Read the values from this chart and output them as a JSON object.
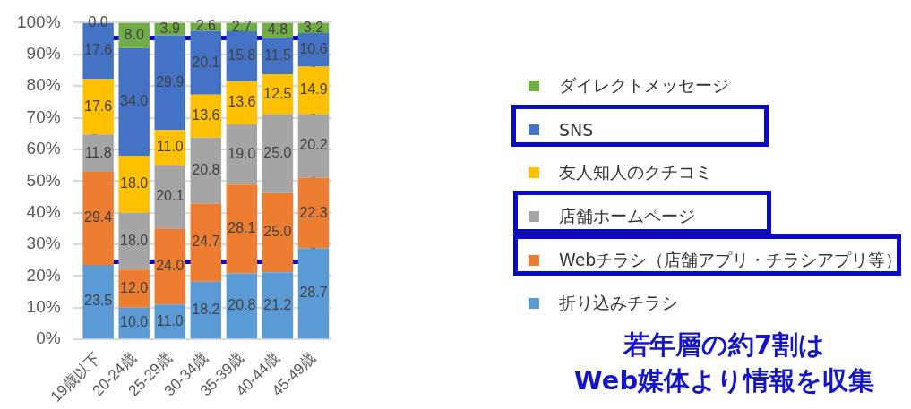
{
  "chart_data": {
    "type": "bar",
    "stacked": true,
    "categories": [
      "19歳以下",
      "20-24歳",
      "25-29歳",
      "30-34歳",
      "35-39歳",
      "40-44歳",
      "45-49歳"
    ],
    "series": [
      {
        "name": "折り込みチラシ",
        "color": "#5b9bd5",
        "values": [
          23.5,
          10,
          11,
          18.2,
          20.8,
          21.2,
          28.7
        ],
        "value_labels": [
          "23.5",
          "10.0",
          "11.0",
          "18.2",
          "20.8",
          "21.2",
          "28.7"
        ]
      },
      {
        "name": "Webチラシ（店舗アプリ・チラシアプリ等）",
        "color": "#ed7d31",
        "values": [
          29.4,
          12,
          24,
          24.7,
          28.1,
          25,
          22.3
        ],
        "value_labels": [
          "29.4",
          "12.0",
          "24.0",
          "24.7",
          "28.1",
          "25.0",
          "22.3"
        ]
      },
      {
        "name": "店舗ホームページ",
        "color": "#a5a5a5",
        "values": [
          11.8,
          18,
          20.1,
          20.8,
          19,
          25,
          20.2
        ],
        "value_labels": [
          "11.8",
          "18.0",
          "20.1",
          "20.8",
          "19.0",
          "25.0",
          "20.2"
        ]
      },
      {
        "name": "友人知人のクチコミ",
        "color": "#ffc000",
        "values": [
          17.6,
          18,
          11,
          13.6,
          13.6,
          12.5,
          14.9
        ],
        "value_labels": [
          "17.6",
          "18.0",
          "11.0",
          "13.6",
          "13.6",
          "12.5",
          "14.9"
        ]
      },
      {
        "name": "SNS",
        "color": "#4472c4",
        "values": [
          17.6,
          34,
          29.9,
          20.1,
          15.8,
          11.5,
          10.6
        ],
        "value_labels": [
          "17.6",
          "34.0",
          "29.9",
          "20.1",
          "15.8",
          "11.5",
          "10.6"
        ]
      },
      {
        "name": "ダイレクトメッセージ",
        "color": "#70ad47",
        "values": [
          0,
          8,
          3.9,
          2.6,
          2.7,
          4.8,
          3.2
        ],
        "value_labels": [
          "0.0",
          "8.0",
          "3.9",
          "2.6",
          "2.7",
          "4.8",
          "3.2"
        ]
      }
    ],
    "ylim": [
      0,
      100
    ],
    "yticks": [
      {
        "value": 0,
        "label": "0%"
      },
      {
        "value": 10,
        "label": "10%"
      },
      {
        "value": 20,
        "label": "20%"
      },
      {
        "value": 30,
        "label": "30%"
      },
      {
        "value": 40,
        "label": "40%"
      },
      {
        "value": 50,
        "label": "50%"
      },
      {
        "value": 60,
        "label": "60%"
      },
      {
        "value": 70,
        "label": "70%"
      },
      {
        "value": 80,
        "label": "80%"
      },
      {
        "value": 90,
        "label": "90%"
      },
      {
        "value": 100,
        "label": "100%"
      }
    ],
    "grid": "y",
    "legend": "right",
    "annotations": [
      "若年層の約7割は",
      "Web媒体より情報を収集"
    ]
  }
}
